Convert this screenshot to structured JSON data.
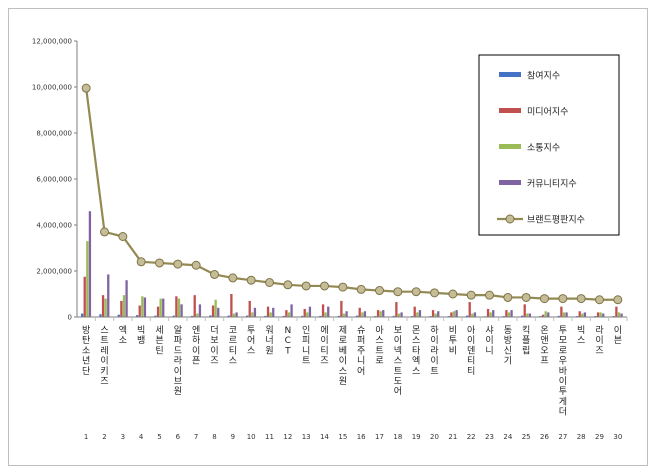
{
  "chart_data": {
    "type": "bar",
    "title": "",
    "xlabel": "",
    "ylabel": "",
    "ylim": [
      0,
      12000000
    ],
    "yticks": [
      "0",
      "2,000,000",
      "4,000,000",
      "6,000,000",
      "8,000,000",
      "10,000,000",
      "12,000,000"
    ],
    "ytick_values": [
      0,
      2000000,
      4000000,
      6000000,
      8000000,
      10000000,
      12000000
    ],
    "grid": false,
    "legend_position": "top-right",
    "categories": [
      "방탄소년단",
      "스트레이키즈",
      "엑소",
      "빅뱅",
      "세븐틴",
      "알파드라이브원",
      "엔하이픈",
      "더보이즈",
      "코르티스",
      "투어스",
      "워너원",
      "NCT",
      "인피니트",
      "에이티즈",
      "제로베이스원",
      "슈퍼주니어",
      "아스트로",
      "보이넥스트도어",
      "몬스타엑스",
      "하이라이트",
      "비투비",
      "아이덴티티",
      "샤이니",
      "동방신기",
      "킥플립",
      "온앤오프",
      "투모로우바이투게더",
      "빅스",
      "라이즈",
      "이븐"
    ],
    "indices": [
      "1",
      "2",
      "3",
      "4",
      "5",
      "6",
      "7",
      "8",
      "9",
      "10",
      "11",
      "12",
      "13",
      "14",
      "15",
      "16",
      "17",
      "18",
      "19",
      "20",
      "21",
      "22",
      "23",
      "24",
      "25",
      "26",
      "27",
      "28",
      "29",
      "30"
    ],
    "series": [
      {
        "name": "참여지수",
        "type": "bar",
        "color": "#4472c4",
        "values": [
          150000,
          120000,
          100000,
          80000,
          60000,
          60000,
          50000,
          70000,
          60000,
          60000,
          50000,
          50000,
          50000,
          50000,
          50000,
          60000,
          40000,
          50000,
          40000,
          40000,
          40000,
          60000,
          30000,
          40000,
          60000,
          40000,
          50000,
          40000,
          40000,
          40000
        ]
      },
      {
        "name": "미디어지수",
        "type": "bar",
        "color": "#c0504d",
        "values": [
          1750000,
          950000,
          700000,
          500000,
          450000,
          900000,
          950000,
          500000,
          1000000,
          700000,
          450000,
          300000,
          350000,
          550000,
          700000,
          400000,
          300000,
          650000,
          450000,
          300000,
          200000,
          650000,
          350000,
          300000,
          550000,
          100000,
          450000,
          250000,
          200000,
          450000
        ]
      },
      {
        "name": "소통지수",
        "type": "bar",
        "color": "#9bbb59",
        "values": [
          3300000,
          800000,
          950000,
          900000,
          800000,
          800000,
          150000,
          750000,
          150000,
          200000,
          200000,
          200000,
          200000,
          200000,
          150000,
          200000,
          250000,
          150000,
          200000,
          150000,
          250000,
          150000,
          200000,
          200000,
          150000,
          250000,
          200000,
          150000,
          200000,
          200000
        ]
      },
      {
        "name": "커뮤니티지수",
        "type": "bar",
        "color": "#8064a2",
        "values": [
          4600000,
          1850000,
          1600000,
          850000,
          800000,
          550000,
          550000,
          400000,
          200000,
          400000,
          400000,
          550000,
          450000,
          450000,
          250000,
          250000,
          300000,
          200000,
          300000,
          250000,
          300000,
          200000,
          300000,
          300000,
          150000,
          200000,
          200000,
          200000,
          150000,
          150000
        ]
      },
      {
        "name": "브랜드평판지수",
        "type": "line",
        "color": "#938953",
        "values": [
          9950000,
          3700000,
          3500000,
          2400000,
          2350000,
          2300000,
          2250000,
          1850000,
          1700000,
          1600000,
          1500000,
          1400000,
          1350000,
          1350000,
          1300000,
          1200000,
          1150000,
          1100000,
          1100000,
          1050000,
          1000000,
          950000,
          950000,
          850000,
          850000,
          800000,
          800000,
          800000,
          750000,
          750000
        ]
      }
    ]
  }
}
